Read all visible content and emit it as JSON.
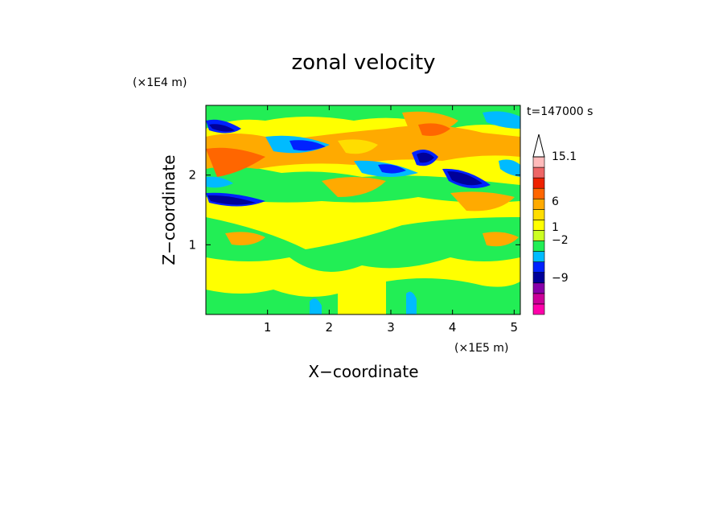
{
  "chart_data": {
    "type": "heatmap",
    "title": "zonal velocity",
    "xlabel": "X−coordinate",
    "ylabel": "Z−coordinate",
    "x_unit": "(×1E5 m)",
    "y_unit": "(×1E4 m)",
    "time_label": "t=147000 s",
    "xlim": [
      0,
      5.1
    ],
    "ylim": [
      0,
      3.0
    ],
    "x_ticks": [
      "1",
      "2",
      "3",
      "4",
      "5"
    ],
    "x_tick_values": [
      1,
      2,
      3,
      4,
      5
    ],
    "y_ticks": [
      "1",
      "2"
    ],
    "y_tick_values": [
      1,
      2
    ],
    "colorbar": {
      "labels": [
        "15.1",
        "6",
        "1",
        "−2",
        "−9"
      ],
      "label_values": [
        15.1,
        6,
        1,
        -2,
        -9
      ],
      "colors": [
        "#ff00aa",
        "#cc0099",
        "#8800aa",
        "#000099",
        "#0022ff",
        "#00bbff",
        "#22ee55",
        "#ccff22",
        "#ffff00",
        "#ffdd00",
        "#ffaa00",
        "#ff6600",
        "#ee2200",
        "#ee6666",
        "#ffbbbb",
        "#ffffff"
      ]
    },
    "grid": false,
    "legend": "colorbar-right"
  }
}
